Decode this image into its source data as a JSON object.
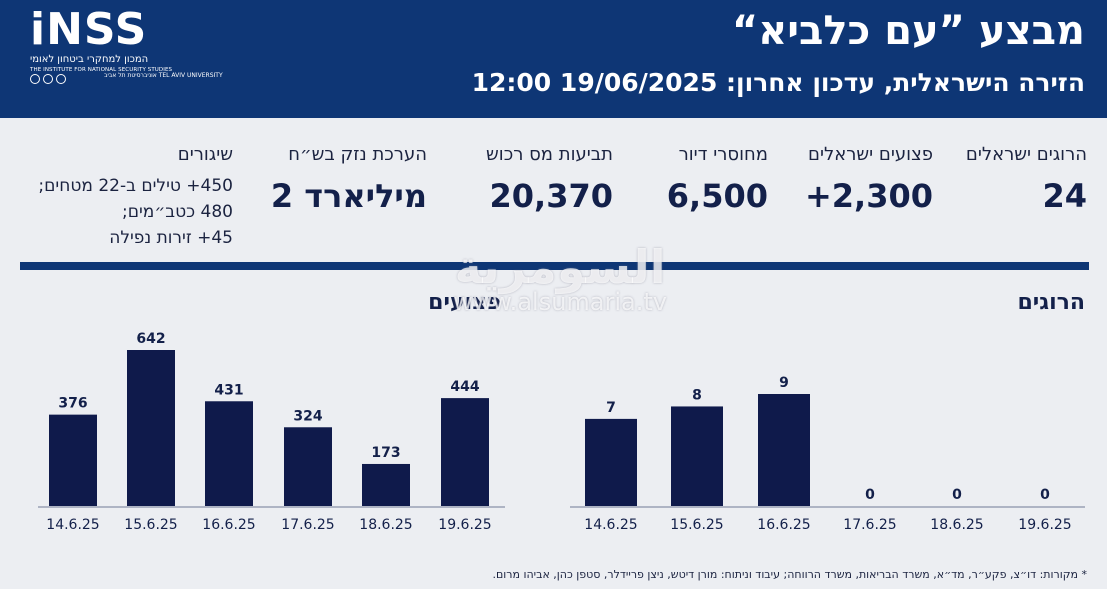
{
  "header": {
    "title": "מבצע ”עם כלביא“",
    "subtitle": "הזירה הישראלית, עדכון אחרון: 19/06/2025 12:00",
    "logo": {
      "mark": "iNSS",
      "hebrew": "המכון למחקרי ביטחון לאומי",
      "english": "THE INSTITUTE FOR NATIONAL SECURITY STUDIES",
      "university": "אוניברסיטת תל אביב TEL AVIV UNIVERSITY"
    }
  },
  "stats": [
    {
      "label": "הרוגים ישראלים",
      "value": "24"
    },
    {
      "label": "פצועים ישראלים",
      "value": "+2,300"
    },
    {
      "label": "מחוסרי דיור",
      "value": "6,500"
    },
    {
      "label": "תביעות מס רכוש",
      "value": "20,370"
    },
    {
      "label": "הערכת נזק בש״ח",
      "value": "2 מיליארד"
    }
  ],
  "interceptions": {
    "label": "שיגורים",
    "lines": [
      "450+ טילים ב-22 מטחים;",
      "480 כטב״מים;",
      "45+ זירות נפילה"
    ]
  },
  "chart_data": [
    {
      "type": "bar",
      "title": "הרוגים",
      "categories": [
        "14.6.25",
        "15.6.25",
        "16.6.25",
        "17.6.25",
        "18.6.25",
        "19.6.25"
      ],
      "values": [
        7,
        8,
        9,
        0,
        0,
        0
      ],
      "color": "#0f1a4b"
    },
    {
      "type": "bar",
      "title": "פצועים",
      "categories": [
        "14.6.25",
        "15.6.25",
        "16.6.25",
        "17.6.25",
        "18.6.25",
        "19.6.25"
      ],
      "values": [
        376,
        642,
        431,
        324,
        173,
        444
      ],
      "color": "#0f1a4b"
    }
  ],
  "watermark": {
    "arabic": "السومرية",
    "url": "www.alsumaria.tv"
  },
  "footer": "* מקורות: דו״צ, פקע״ר, מד״א, משרד הבריאות, משרד הרווחה; עיבוד וניתוח: מורן דיטש, ניצן פריידלר, סטפן כהן, אביהו מרום."
}
